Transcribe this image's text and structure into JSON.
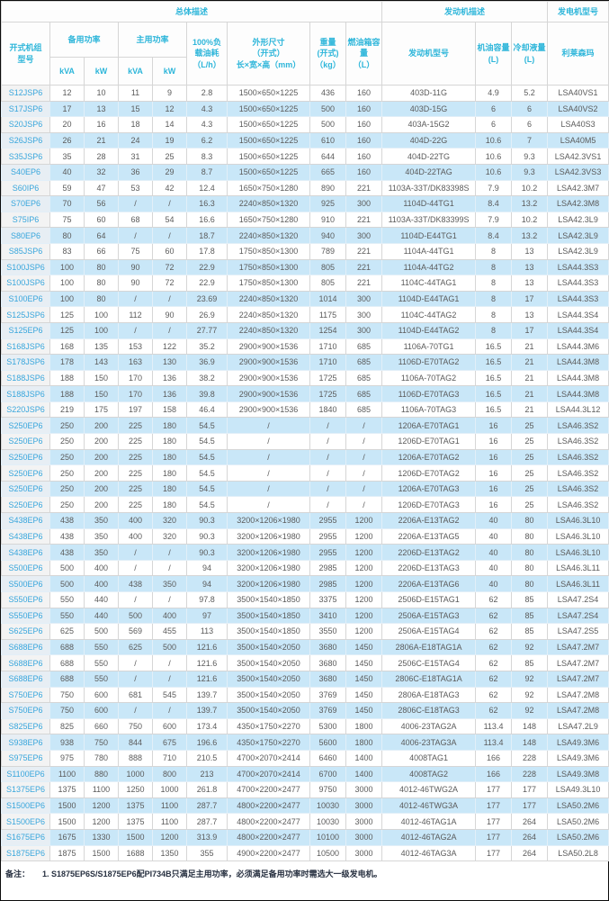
{
  "colors": {
    "accent_header_text": "#2eb6da",
    "model_link": "#38a6dc",
    "row_stripe": "#c9e7f8",
    "first_col_bg": "#f3f3f3"
  },
  "header": {
    "group_overall": "总体描述",
    "group_engine": "发动机描述",
    "group_alternator": "发电机型号",
    "model": "开式机组\n型号",
    "standby_power": "备用功率",
    "prime_power": "主用功率",
    "kva": "kVA",
    "kw": "kW",
    "fuel_100": "100%负\n载油耗\n（L/h）",
    "dimensions": "外形尺寸\n（开式）\n长×宽×高（mm）",
    "weight": "重量\n(开式)\n（kg）",
    "tank": "燃油箱容\n量\n（L）",
    "engine_model": "发动机型号",
    "oil": "机油容量\n(L)",
    "coolant": "冷却液量\n(L)",
    "leroy_somer": "利莱森玛"
  },
  "table": {
    "rows": [
      [
        "S12JSP6",
        "12",
        "10",
        "11",
        "9",
        "2.8",
        "1500×650×1225",
        "436",
        "160",
        "403D-11G",
        "4.9",
        "5.2",
        "LSA40VS1"
      ],
      [
        "S17JSP6",
        "17",
        "13",
        "15",
        "12",
        "4.3",
        "1500×650×1225",
        "500",
        "160",
        "403D-15G",
        "6",
        "6",
        "LSA40VS2"
      ],
      [
        "S20JSP6",
        "20",
        "16",
        "18",
        "14",
        "4.3",
        "1500×650×1225",
        "500",
        "160",
        "403A-15G2",
        "6",
        "6",
        "LSA40S3"
      ],
      [
        "S26JSP6",
        "26",
        "21",
        "24",
        "19",
        "6.2",
        "1500×650×1225",
        "610",
        "160",
        "404D-22G",
        "10.6",
        "7",
        "LSA40M5"
      ],
      [
        "S35JSP6",
        "35",
        "28",
        "31",
        "25",
        "8.3",
        "1500×650×1225",
        "644",
        "160",
        "404D-22TG",
        "10.6",
        "9.3",
        "LSA42.3VS1"
      ],
      [
        "S40EP6",
        "40",
        "32",
        "36",
        "29",
        "8.7",
        "1500×650×1225",
        "665",
        "160",
        "404D-22TAG",
        "10.6",
        "9.3",
        "LSA42.3VS3"
      ],
      [
        "S60IP6",
        "59",
        "47",
        "53",
        "42",
        "12.4",
        "1650×750×1280",
        "890",
        "221",
        "1103A-33T/DK83398S",
        "7.9",
        "10.2",
        "LSA42.3M7"
      ],
      [
        "S70EP6",
        "70",
        "56",
        "/",
        "/",
        "16.3",
        "2240×850×1320",
        "925",
        "300",
        "1104D-44TG1",
        "8.4",
        "13.2",
        "LSA42.3M8"
      ],
      [
        "S75IP6",
        "75",
        "60",
        "68",
        "54",
        "16.6",
        "1650×750×1280",
        "910",
        "221",
        "1103A-33T/DK83399S",
        "7.9",
        "10.2",
        "LSA42.3L9"
      ],
      [
        "S80EP6",
        "80",
        "64",
        "/",
        "/",
        "18.7",
        "2240×850×1320",
        "940",
        "300",
        "1104D-E44TG1",
        "8.4",
        "13.2",
        "LSA42.3L9"
      ],
      [
        "S85JSP6",
        "83",
        "66",
        "75",
        "60",
        "17.8",
        "1750×850×1300",
        "789",
        "221",
        "1104A-44TG1",
        "8",
        "13",
        "LSA42.3L9"
      ],
      [
        "S100JSP6",
        "100",
        "80",
        "90",
        "72",
        "22.9",
        "1750×850×1300",
        "805",
        "221",
        "1104A-44TG2",
        "8",
        "13",
        "LSA44.3S3"
      ],
      [
        "S100JSP6",
        "100",
        "80",
        "90",
        "72",
        "22.9",
        "1750×850×1300",
        "805",
        "221",
        "1104C-44TAG1",
        "8",
        "13",
        "LSA44.3S3"
      ],
      [
        "S100EP6",
        "100",
        "80",
        "/",
        "/",
        "23.69",
        "2240×850×1320",
        "1014",
        "300",
        "1104D-E44TAG1",
        "8",
        "17",
        "LSA44.3S3"
      ],
      [
        "S125JSP6",
        "125",
        "100",
        "112",
        "90",
        "26.9",
        "2240×850×1320",
        "1175",
        "300",
        "1104C-44TAG2",
        "8",
        "13",
        "LSA44.3S4"
      ],
      [
        "S125EP6",
        "125",
        "100",
        "/",
        "/",
        "27.77",
        "2240×850×1320",
        "1254",
        "300",
        "1104D-E44TAG2",
        "8",
        "17",
        "LSA44.3S4"
      ],
      [
        "S168JSP6",
        "168",
        "135",
        "153",
        "122",
        "35.2",
        "2900×900×1536",
        "1710",
        "685",
        "1106A-70TG1",
        "16.5",
        "21",
        "LSA44.3M6"
      ],
      [
        "S178JSP6",
        "178",
        "143",
        "163",
        "130",
        "36.9",
        "2900×900×1536",
        "1710",
        "685",
        "1106D-E70TAG2",
        "16.5",
        "21",
        "LSA44.3M8"
      ],
      [
        "S188JSP6",
        "188",
        "150",
        "170",
        "136",
        "38.2",
        "2900×900×1536",
        "1725",
        "685",
        "1106A-70TAG2",
        "16.5",
        "21",
        "LSA44.3M8"
      ],
      [
        "S188JSP6",
        "188",
        "150",
        "170",
        "136",
        "39.8",
        "2900×900×1536",
        "1725",
        "685",
        "1106D-E70TAG3",
        "16.5",
        "21",
        "LSA44.3M8"
      ],
      [
        "S220JSP6",
        "219",
        "175",
        "197",
        "158",
        "46.4",
        "2900×900×1536",
        "1840",
        "685",
        "1106A-70TAG3",
        "16.5",
        "21",
        "LSA44.3L12"
      ],
      [
        "S250EP6",
        "250",
        "200",
        "225",
        "180",
        "54.5",
        "/",
        "/",
        "/",
        "1206A-E70TAG1",
        "16",
        "25",
        "LSA46.3S2"
      ],
      [
        "S250EP6",
        "250",
        "200",
        "225",
        "180",
        "54.5",
        "/",
        "/",
        "/",
        "1206D-E70TAG1",
        "16",
        "25",
        "LSA46.3S2"
      ],
      [
        "S250EP6",
        "250",
        "200",
        "225",
        "180",
        "54.5",
        "/",
        "/",
        "/",
        "1206A-E70TAG2",
        "16",
        "25",
        "LSA46.3S2"
      ],
      [
        "S250EP6",
        "250",
        "200",
        "225",
        "180",
        "54.5",
        "/",
        "/",
        "/",
        "1206D-E70TAG2",
        "16",
        "25",
        "LSA46.3S2"
      ],
      [
        "S250EP6",
        "250",
        "200",
        "225",
        "180",
        "54.5",
        "/",
        "/",
        "/",
        "1206A-E70TAG3",
        "16",
        "25",
        "LSA46.3S2"
      ],
      [
        "S250EP6",
        "250",
        "200",
        "225",
        "180",
        "54.5",
        "/",
        "/",
        "/",
        "1206D-E70TAG3",
        "16",
        "25",
        "LSA46.3S2"
      ],
      [
        "S438EP6",
        "438",
        "350",
        "400",
        "320",
        "90.3",
        "3200×1206×1980",
        "2955",
        "1200",
        "2206A-E13TAG2",
        "40",
        "80",
        "LSA46.3L10"
      ],
      [
        "S438EP6",
        "438",
        "350",
        "400",
        "320",
        "90.3",
        "3200×1206×1980",
        "2955",
        "1200",
        "2206A-E13TAG5",
        "40",
        "80",
        "LSA46.3L10"
      ],
      [
        "S438EP6",
        "438",
        "350",
        "/",
        "/",
        "90.3",
        "3200×1206×1980",
        "2955",
        "1200",
        "2206D-E13TAG2",
        "40",
        "80",
        "LSA46.3L10"
      ],
      [
        "S500EP6",
        "500",
        "400",
        "/",
        "/",
        "94",
        "3200×1206×1980",
        "2985",
        "1200",
        "2206D-E13TAG3",
        "40",
        "80",
        "LSA46.3L11"
      ],
      [
        "S500EP6",
        "500",
        "400",
        "438",
        "350",
        "94",
        "3200×1206×1980",
        "2985",
        "1200",
        "2206A-E13TAG6",
        "40",
        "80",
        "LSA46.3L11"
      ],
      [
        "S550EP6",
        "550",
        "440",
        "/",
        "/",
        "97.8",
        "3500×1540×1850",
        "3375",
        "1200",
        "2506D-E15TAG1",
        "62",
        "85",
        "LSA47.2S4"
      ],
      [
        "S550EP6",
        "550",
        "440",
        "500",
        "400",
        "97",
        "3500×1540×1850",
        "3410",
        "1200",
        "2506A-E15TAG3",
        "62",
        "85",
        "LSA47.2S4"
      ],
      [
        "S625EP6",
        "625",
        "500",
        "569",
        "455",
        "113",
        "3500×1540×1850",
        "3550",
        "1200",
        "2506A-E15TAG4",
        "62",
        "85",
        "LSA47.2S5"
      ],
      [
        "S688EP6",
        "688",
        "550",
        "625",
        "500",
        "121.6",
        "3500×1540×2050",
        "3680",
        "1450",
        "2806A-E18TAG1A",
        "62",
        "92",
        "LSA47.2M7"
      ],
      [
        "S688EP6",
        "688",
        "550",
        "/",
        "/",
        "121.6",
        "3500×1540×2050",
        "3680",
        "1450",
        "2506C-E15TAG4",
        "62",
        "85",
        "LSA47.2M7"
      ],
      [
        "S688EP6",
        "688",
        "550",
        "/",
        "/",
        "121.6",
        "3500×1540×2050",
        "3680",
        "1450",
        "2806C-E18TAG1A",
        "62",
        "92",
        "LSA47.2M7"
      ],
      [
        "S750EP6",
        "750",
        "600",
        "681",
        "545",
        "139.7",
        "3500×1540×2050",
        "3769",
        "1450",
        "2806A-E18TAG3",
        "62",
        "92",
        "LSA47.2M8"
      ],
      [
        "S750EP6",
        "750",
        "600",
        "/",
        "/",
        "139.7",
        "3500×1540×2050",
        "3769",
        "1450",
        "2806C-E18TAG3",
        "62",
        "92",
        "LSA47.2M8"
      ],
      [
        "S825EP6",
        "825",
        "660",
        "750",
        "600",
        "173.4",
        "4350×1750×2270",
        "5300",
        "1800",
        "4006-23TAG2A",
        "113.4",
        "148",
        "LSA47.2L9"
      ],
      [
        "S938EP6",
        "938",
        "750",
        "844",
        "675",
        "196.6",
        "4350×1750×2270",
        "5600",
        "1800",
        "4006-23TAG3A",
        "113.4",
        "148",
        "LSA49.3M6"
      ],
      [
        "S975EP6",
        "975",
        "780",
        "888",
        "710",
        "210.5",
        "4700×2070×2414",
        "6460",
        "1400",
        "4008TAG1",
        "166",
        "228",
        "LSA49.3M6"
      ],
      [
        "S1100EP6",
        "1100",
        "880",
        "1000",
        "800",
        "213",
        "4700×2070×2414",
        "6700",
        "1400",
        "4008TAG2",
        "166",
        "228",
        "LSA49.3M8"
      ],
      [
        "S1375EP6",
        "1375",
        "1100",
        "1250",
        "1000",
        "261.8",
        "4700×2200×2477",
        "9750",
        "3000",
        "4012-46TWG2A",
        "177",
        "177",
        "LSA49.3L10"
      ],
      [
        "S1500EP6",
        "1500",
        "1200",
        "1375",
        "1100",
        "287.7",
        "4800×2200×2477",
        "10030",
        "3000",
        "4012-46TWG3A",
        "177",
        "177",
        "LSA50.2M6"
      ],
      [
        "S1500EP6",
        "1500",
        "1200",
        "1375",
        "1100",
        "287.7",
        "4800×2200×2477",
        "10030",
        "3000",
        "4012-46TAG1A",
        "177",
        "264",
        "LSA50.2M6"
      ],
      [
        "S1675EP6",
        "1675",
        "1330",
        "1500",
        "1200",
        "313.9",
        "4800×2200×2477",
        "10100",
        "3000",
        "4012-46TAG2A",
        "177",
        "264",
        "LSA50.2M6"
      ],
      [
        "S1875EP6",
        "1875",
        "1500",
        "1688",
        "1350",
        "355",
        "4900×2200×2477",
        "10500",
        "3000",
        "4012-46TAG3A",
        "177",
        "264",
        "LSA50.2L8"
      ]
    ]
  },
  "footer": {
    "label": "备注：",
    "note": "1. S1875EP6S/S1875EP6配PI734B只满足主用功率，必须满足备用功率时需选大一级发电机。"
  }
}
